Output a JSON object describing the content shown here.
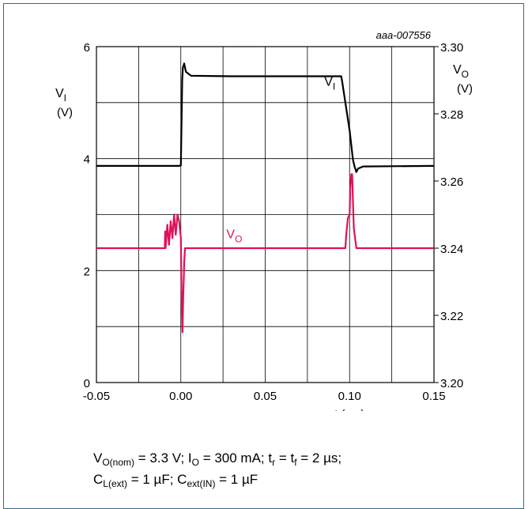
{
  "figure_id": "aaa-007556",
  "chart_data": {
    "type": "line",
    "x_axis": {
      "label": "t (ms)",
      "ticks": [
        "-0.05",
        "0.00",
        "0.05",
        "0.10",
        "0.15"
      ],
      "range": [
        -0.05,
        0.15
      ]
    },
    "y_left": {
      "label": "V",
      "label_sub": "I",
      "unit": "(V)",
      "ticks": [
        "0",
        "2",
        "4",
        "6"
      ],
      "range": [
        0,
        6
      ]
    },
    "y_right": {
      "label": "V",
      "label_sub": "O",
      "unit": "(V)",
      "ticks": [
        "3.20",
        "3.22",
        "3.24",
        "3.26",
        "3.28",
        "3.30"
      ],
      "range": [
        3.2,
        3.3
      ]
    },
    "grid": true,
    "series": [
      {
        "name": "V",
        "name_sub": "I",
        "axis": "left",
        "color": "#000000",
        "label_pos": [
          0.085,
          5.3
        ],
        "points": [
          [
            -0.05,
            3.87
          ],
          [
            -0.001,
            3.87
          ],
          [
            0.0,
            3.88
          ],
          [
            0.0008,
            5.4
          ],
          [
            0.0012,
            5.62
          ],
          [
            0.002,
            5.7
          ],
          [
            0.003,
            5.55
          ],
          [
            0.006,
            5.48
          ],
          [
            0.03,
            5.47
          ],
          [
            0.08,
            5.47
          ],
          [
            0.095,
            5.47
          ],
          [
            0.0955,
            5.4
          ],
          [
            0.1,
            4.5
          ],
          [
            0.102,
            3.98
          ],
          [
            0.103,
            3.85
          ],
          [
            0.104,
            3.76
          ],
          [
            0.105,
            3.82
          ],
          [
            0.108,
            3.86
          ],
          [
            0.15,
            3.87
          ]
        ]
      },
      {
        "name": "V",
        "name_sub": "O",
        "axis": "right",
        "color": "#e0105c",
        "label_pos": [
          0.027,
          3.243
        ],
        "points": [
          [
            -0.05,
            3.24
          ],
          [
            -0.0095,
            3.24
          ],
          [
            -0.0093,
            3.245
          ],
          [
            -0.009,
            3.24
          ],
          [
            -0.008,
            3.247
          ],
          [
            -0.007,
            3.241
          ],
          [
            -0.006,
            3.248
          ],
          [
            -0.005,
            3.243
          ],
          [
            -0.004,
            3.25
          ],
          [
            -0.003,
            3.244
          ],
          [
            -0.002,
            3.25
          ],
          [
            -0.001,
            3.248
          ],
          [
            0.0,
            3.243
          ],
          [
            0.0003,
            3.232
          ],
          [
            0.0006,
            3.222
          ],
          [
            0.001,
            3.215
          ],
          [
            0.0014,
            3.225
          ],
          [
            0.0018,
            3.232
          ],
          [
            0.002,
            3.236
          ],
          [
            0.0025,
            3.24
          ],
          [
            0.0975,
            3.24
          ],
          [
            0.098,
            3.244
          ],
          [
            0.099,
            3.249
          ],
          [
            0.1,
            3.25
          ],
          [
            0.1004,
            3.258
          ],
          [
            0.101,
            3.262
          ],
          [
            0.1015,
            3.262
          ],
          [
            0.102,
            3.254
          ],
          [
            0.1025,
            3.246
          ],
          [
            0.104,
            3.24
          ],
          [
            0.15,
            3.24
          ]
        ]
      }
    ]
  },
  "caption": {
    "line1": [
      {
        "t": "V"
      },
      {
        "t": "O(nom)",
        "sub": true
      },
      {
        "t": " = 3.3 V; I"
      },
      {
        "t": "O",
        "sub": true
      },
      {
        "t": " = 300 mA; t"
      },
      {
        "t": "r",
        "sub": true
      },
      {
        "t": " = t"
      },
      {
        "t": "f",
        "sub": true
      },
      {
        "t": " = 2 µs;"
      }
    ],
    "line2": [
      {
        "t": "C"
      },
      {
        "t": "L(ext)",
        "sub": true
      },
      {
        "t": " = 1 µF; C"
      },
      {
        "t": "ext(IN)",
        "sub": true
      },
      {
        "t": " = 1 µF"
      }
    ]
  }
}
